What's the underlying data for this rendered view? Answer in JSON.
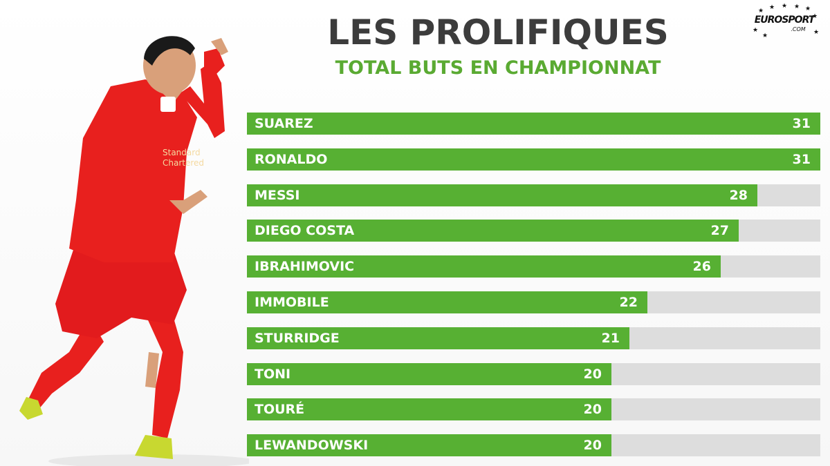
{
  "header": {
    "title": "LES PROLIFIQUES",
    "subtitle": "TOTAL BUTS EN CHAMPIONNAT"
  },
  "logo": {
    "wordmark": "EUROSPORT",
    "suffix": ".COM"
  },
  "colors": {
    "bar": "#57b033",
    "track": "#dddddd",
    "title": "#3c3c3c",
    "subtitle": "#5aaa32"
  },
  "chart_data": {
    "type": "bar",
    "orientation": "horizontal",
    "title": "LES PROLIFIQUES",
    "subtitle": "TOTAL BUTS EN CHAMPIONNAT",
    "categories": [
      "SUAREZ",
      "RONALDO",
      "MESSI",
      "DIEGO COSTA",
      "IBRAHIMOVIC",
      "IMMOBILE",
      "STURRIDGE",
      "TONI",
      "TOURÉ",
      "LEWANDOWSKI"
    ],
    "values": [
      31,
      31,
      28,
      27,
      26,
      22,
      21,
      20,
      20,
      20
    ],
    "xlim": [
      0,
      35
    ],
    "grid": false
  }
}
